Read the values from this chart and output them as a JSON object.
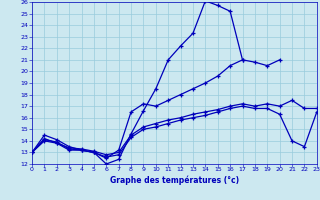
{
  "xlabel": "Graphe des températures (°c)",
  "bg_color": "#cce8f0",
  "grid_color": "#99ccdd",
  "line_color": "#0000bb",
  "xlim": [
    0,
    23
  ],
  "ylim": [
    12,
    26
  ],
  "yticks": [
    12,
    13,
    14,
    15,
    16,
    17,
    18,
    19,
    20,
    21,
    22,
    23,
    24,
    25,
    26
  ],
  "xticks": [
    0,
    1,
    2,
    3,
    4,
    5,
    6,
    7,
    8,
    9,
    10,
    11,
    12,
    13,
    14,
    15,
    16,
    17,
    18,
    19,
    20,
    21,
    22,
    23
  ],
  "series": [
    {
      "x": [
        0,
        1,
        2,
        3,
        4,
        5,
        6,
        7,
        8,
        9,
        10,
        11,
        12,
        13,
        14,
        15,
        16,
        17
      ],
      "y": [
        13,
        14.2,
        13.8,
        13.2,
        13.2,
        13.0,
        12.0,
        12.4,
        14.6,
        16.6,
        18.5,
        21.0,
        22.2,
        23.3,
        26.1,
        25.7,
        25.2,
        21.0
      ]
    },
    {
      "x": [
        0,
        1,
        2,
        3,
        4,
        5,
        6,
        7,
        8,
        9,
        10,
        11,
        12,
        13,
        14,
        15,
        16,
        17,
        18,
        19,
        20
      ],
      "y": [
        13.0,
        14.5,
        14.1,
        13.5,
        13.2,
        13.0,
        12.5,
        13.2,
        16.5,
        17.2,
        17.0,
        17.5,
        18.0,
        18.5,
        19.0,
        19.6,
        20.5,
        21.0,
        20.8,
        20.5,
        21.0
      ]
    },
    {
      "x": [
        0,
        1,
        2,
        3,
        4,
        5,
        6,
        7,
        8,
        9,
        10,
        11,
        12,
        13,
        14,
        15,
        16,
        17,
        18,
        19,
        20,
        21,
        22,
        23
      ],
      "y": [
        13.0,
        14.0,
        13.8,
        13.4,
        13.3,
        13.1,
        12.8,
        13.0,
        14.5,
        15.2,
        15.5,
        15.8,
        16.0,
        16.3,
        16.5,
        16.7,
        17.0,
        17.2,
        17.0,
        17.2,
        17.0,
        17.5,
        16.8,
        16.8
      ]
    },
    {
      "x": [
        0,
        1,
        2,
        3,
        4,
        5,
        6,
        7,
        8,
        9,
        10,
        11,
        12,
        13,
        14,
        15,
        16,
        17,
        18,
        19,
        20,
        21,
        22,
        23
      ],
      "y": [
        13.0,
        14.1,
        13.9,
        13.3,
        13.2,
        13.0,
        12.6,
        12.8,
        14.3,
        15.0,
        15.2,
        15.5,
        15.8,
        16.0,
        16.2,
        16.5,
        16.8,
        17.0,
        16.8,
        16.8,
        16.3,
        14.0,
        13.5,
        16.5
      ]
    }
  ]
}
